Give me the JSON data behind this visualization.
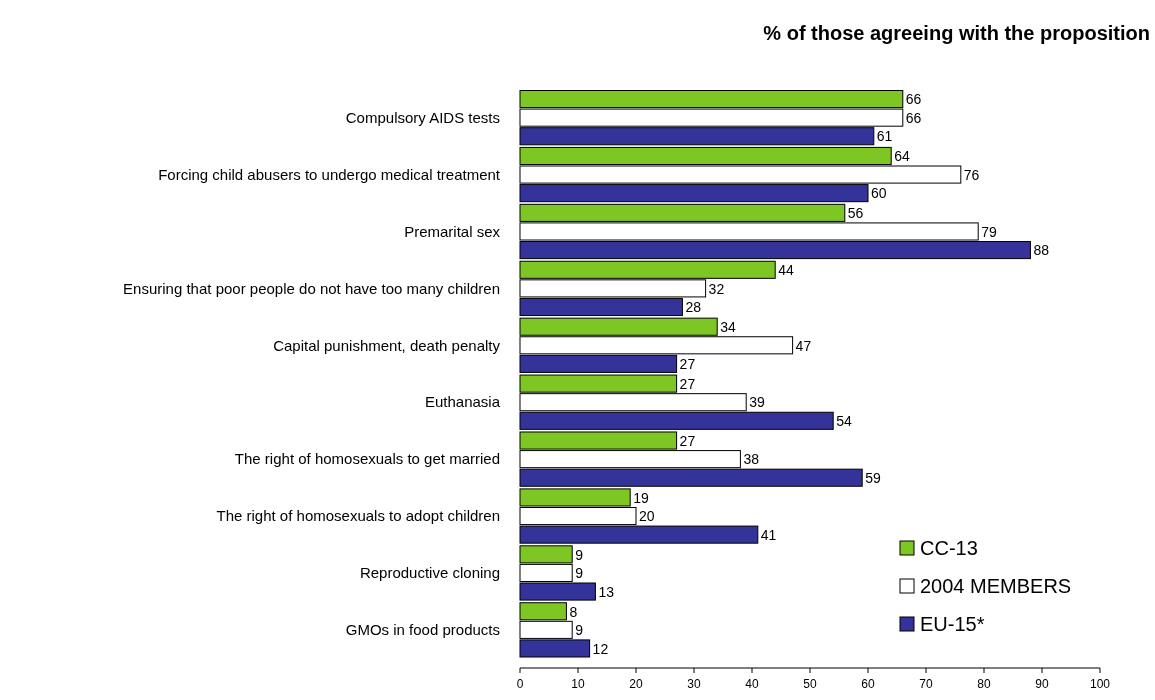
{
  "chart_data": {
    "type": "bar",
    "orientation": "horizontal",
    "title": "% of those agreeing with the proposition",
    "categories": [
      "Compulsory AIDS tests",
      "Forcing child abusers to undergo medical treatment",
      "Premarital sex",
      "Ensuring that poor people do not have too many children",
      "Capital punishment, death penalty",
      "Euthanasia",
      "The right of homosexuals to get married",
      "The right of homosexuals to adopt children",
      "Reproductive cloning",
      "GMOs in food products"
    ],
    "series": [
      {
        "name": "CC-13",
        "color": "#7dc623",
        "values": [
          66,
          64,
          56,
          44,
          34,
          27,
          27,
          19,
          9,
          8
        ]
      },
      {
        "name": "2004 MEMBERS",
        "color": "#ffffff",
        "values": [
          66,
          76,
          79,
          32,
          47,
          39,
          38,
          20,
          9,
          9
        ]
      },
      {
        "name": "EU-15*",
        "color": "#333399",
        "values": [
          61,
          60,
          88,
          28,
          27,
          54,
          59,
          41,
          13,
          12
        ]
      }
    ],
    "xlim": [
      0,
      100
    ],
    "xticks": [
      0,
      10,
      20,
      30,
      40,
      50,
      60,
      70,
      80,
      90,
      100
    ],
    "data_labels": true,
    "legend": "bottom right",
    "grid": false
  }
}
